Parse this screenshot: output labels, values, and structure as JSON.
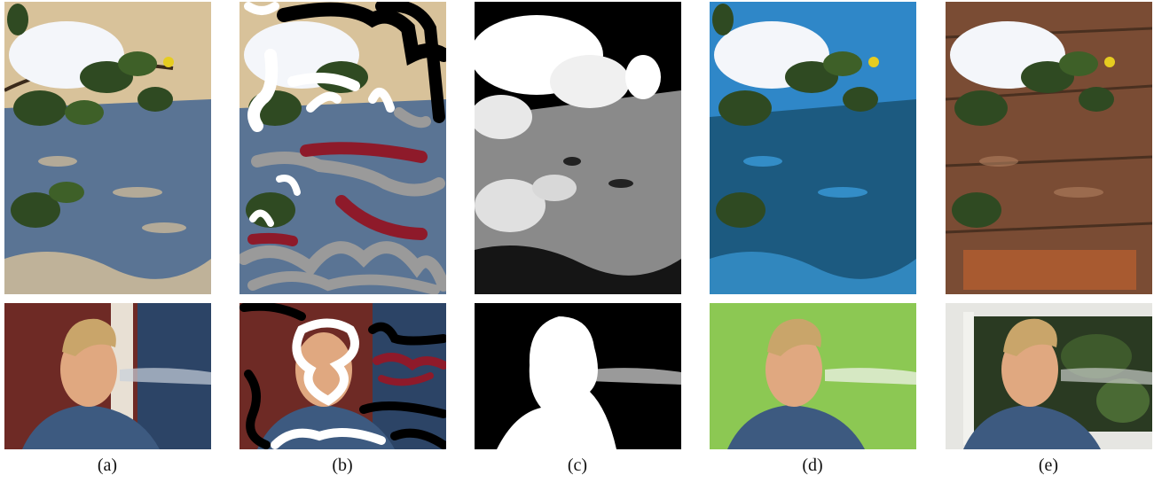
{
  "figure": {
    "captions": [
      "(a)",
      "(b)",
      "(c)",
      "(d)",
      "(e)"
    ],
    "rows": [
      "snow-on-leaves",
      "man-breathing"
    ],
    "columns": [
      "input-image",
      "user-scribbles",
      "alpha-matte",
      "composite-blue-green",
      "composite-new-background"
    ]
  },
  "colors": {
    "wall_beige": "#d8c29a",
    "wall_shadow_blue": "#5a7494",
    "leaf_green": "#2f4a22",
    "snow_white": "#f4f6fa",
    "scribble_white": "#ffffff",
    "scribble_black": "#000000",
    "scribble_gray": "#9a9a9a",
    "scribble_red": "#8e1a2a",
    "composite_blue": "#2f87c8",
    "composite_green": "#8cc853",
    "brick_brown": "#7a4c34",
    "curtain_red": "#6e2a25",
    "curtain_blue": "#2c4466",
    "skin": "#e0a880",
    "hair": "#c9a56a",
    "shirt": "#3d5a80"
  }
}
